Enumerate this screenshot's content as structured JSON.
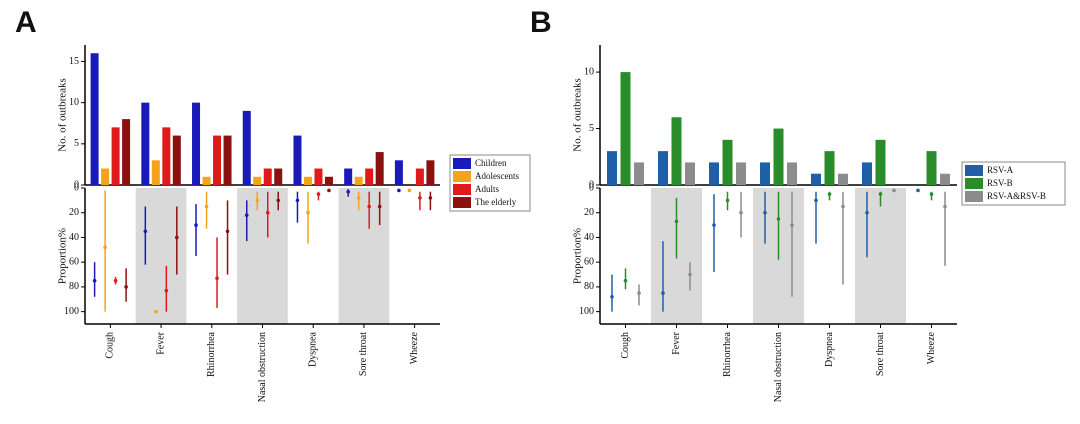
{
  "chart_data": [
    {
      "type": "bar",
      "label": "A",
      "ylabel": "No. of outbreaks",
      "ylim": [
        0,
        17
      ],
      "yticks": [
        0,
        5,
        10,
        15
      ],
      "legend": "right",
      "series": [
        {
          "name": "Children",
          "color": "#1a1ab8",
          "values": [
            16,
            10,
            10,
            9,
            6,
            2,
            3
          ]
        },
        {
          "name": "Adolescents",
          "color": "#f5a31a",
          "values": [
            2,
            3,
            1,
            1,
            1,
            1,
            0
          ]
        },
        {
          "name": "Adults",
          "color": "#e01a1a",
          "values": [
            7,
            7,
            6,
            2,
            2,
            2,
            2
          ]
        },
        {
          "name": "The elderly",
          "color": "#8b1010",
          "values": [
            8,
            6,
            6,
            2,
            1,
            4,
            3
          ]
        }
      ]
    },
    {
      "type": "errorbar",
      "ylabel": "Proportion%",
      "ylim": [
        0,
        110
      ],
      "yticks": [
        0,
        20,
        40,
        60,
        80,
        100
      ],
      "inverted": true,
      "categories": [
        "Cough",
        "Fever",
        "Rhinorrhea",
        "Nasal obstruction",
        "Dyspnea",
        "Sore throat",
        "Wheeze"
      ],
      "series": [
        {
          "color": "#1a1ab8",
          "values": [
            75,
            35,
            30,
            22,
            10,
            3,
            2
          ],
          "low": [
            60,
            15,
            13,
            10,
            3,
            1,
            1
          ],
          "high": [
            88,
            62,
            55,
            43,
            28,
            7,
            3
          ]
        },
        {
          "color": "#f5a31a",
          "values": [
            48,
            100,
            15,
            10,
            20,
            8,
            2
          ],
          "low": [
            2,
            100,
            3,
            3,
            3,
            3,
            2
          ],
          "high": [
            100,
            100,
            33,
            18,
            45,
            18,
            2
          ]
        },
        {
          "color": "#e01a1a",
          "values": [
            75,
            83,
            73,
            20,
            5,
            15,
            8
          ],
          "low": [
            72,
            63,
            40,
            3,
            3,
            3,
            3
          ],
          "high": [
            78,
            100,
            97,
            40,
            10,
            33,
            18
          ]
        },
        {
          "color": "#8b1010",
          "values": [
            80,
            40,
            35,
            10,
            2,
            15,
            8
          ],
          "low": [
            65,
            15,
            10,
            3,
            2,
            3,
            3
          ],
          "high": [
            92,
            70,
            70,
            18,
            2,
            30,
            18
          ]
        }
      ]
    },
    {
      "type": "bar",
      "label": "B",
      "ylabel": "No. of outbreaks",
      "ylim": [
        0,
        12.4
      ],
      "yticks": [
        0,
        5,
        10
      ],
      "legend": "right",
      "series": [
        {
          "name": "RSV-A",
          "color": "#1f5fa8",
          "values": [
            3,
            3,
            2,
            2,
            1,
            2,
            0
          ]
        },
        {
          "name": "RSV-B",
          "color": "#2a8c2a",
          "values": [
            10,
            6,
            4,
            5,
            3,
            4,
            3
          ]
        },
        {
          "name": "RSV-A&RSV-B",
          "color": "#8c8c8c",
          "values": [
            2,
            2,
            2,
            2,
            1,
            0,
            1
          ]
        }
      ]
    },
    {
      "type": "errorbar",
      "ylabel": "Proportion%",
      "ylim": [
        0,
        110
      ],
      "yticks": [
        0,
        20,
        40,
        60,
        80,
        100
      ],
      "inverted": true,
      "categories": [
        "Cough",
        "Fever",
        "Rhinorrhea",
        "Nasal obstruction",
        "Dyspnea",
        "Sore throat",
        "Wheeze"
      ],
      "series": [
        {
          "color": "#1f5fa8",
          "values": [
            88,
            85,
            30,
            20,
            10,
            20,
            2
          ],
          "low": [
            70,
            43,
            5,
            3,
            3,
            3,
            2
          ],
          "high": [
            100,
            100,
            68,
            45,
            45,
            56,
            2
          ]
        },
        {
          "color": "#2a8c2a",
          "values": [
            75,
            27,
            10,
            25,
            5,
            5,
            5
          ],
          "low": [
            65,
            8,
            3,
            3,
            3,
            3,
            3
          ],
          "high": [
            82,
            57,
            18,
            58,
            10,
            15,
            10
          ]
        },
        {
          "color": "#8c8c8c",
          "values": [
            85,
            70,
            20,
            30,
            15,
            2,
            15
          ],
          "low": [
            78,
            60,
            3,
            3,
            3,
            2,
            3
          ],
          "high": [
            95,
            83,
            40,
            88,
            78,
            2,
            63
          ]
        }
      ]
    }
  ]
}
